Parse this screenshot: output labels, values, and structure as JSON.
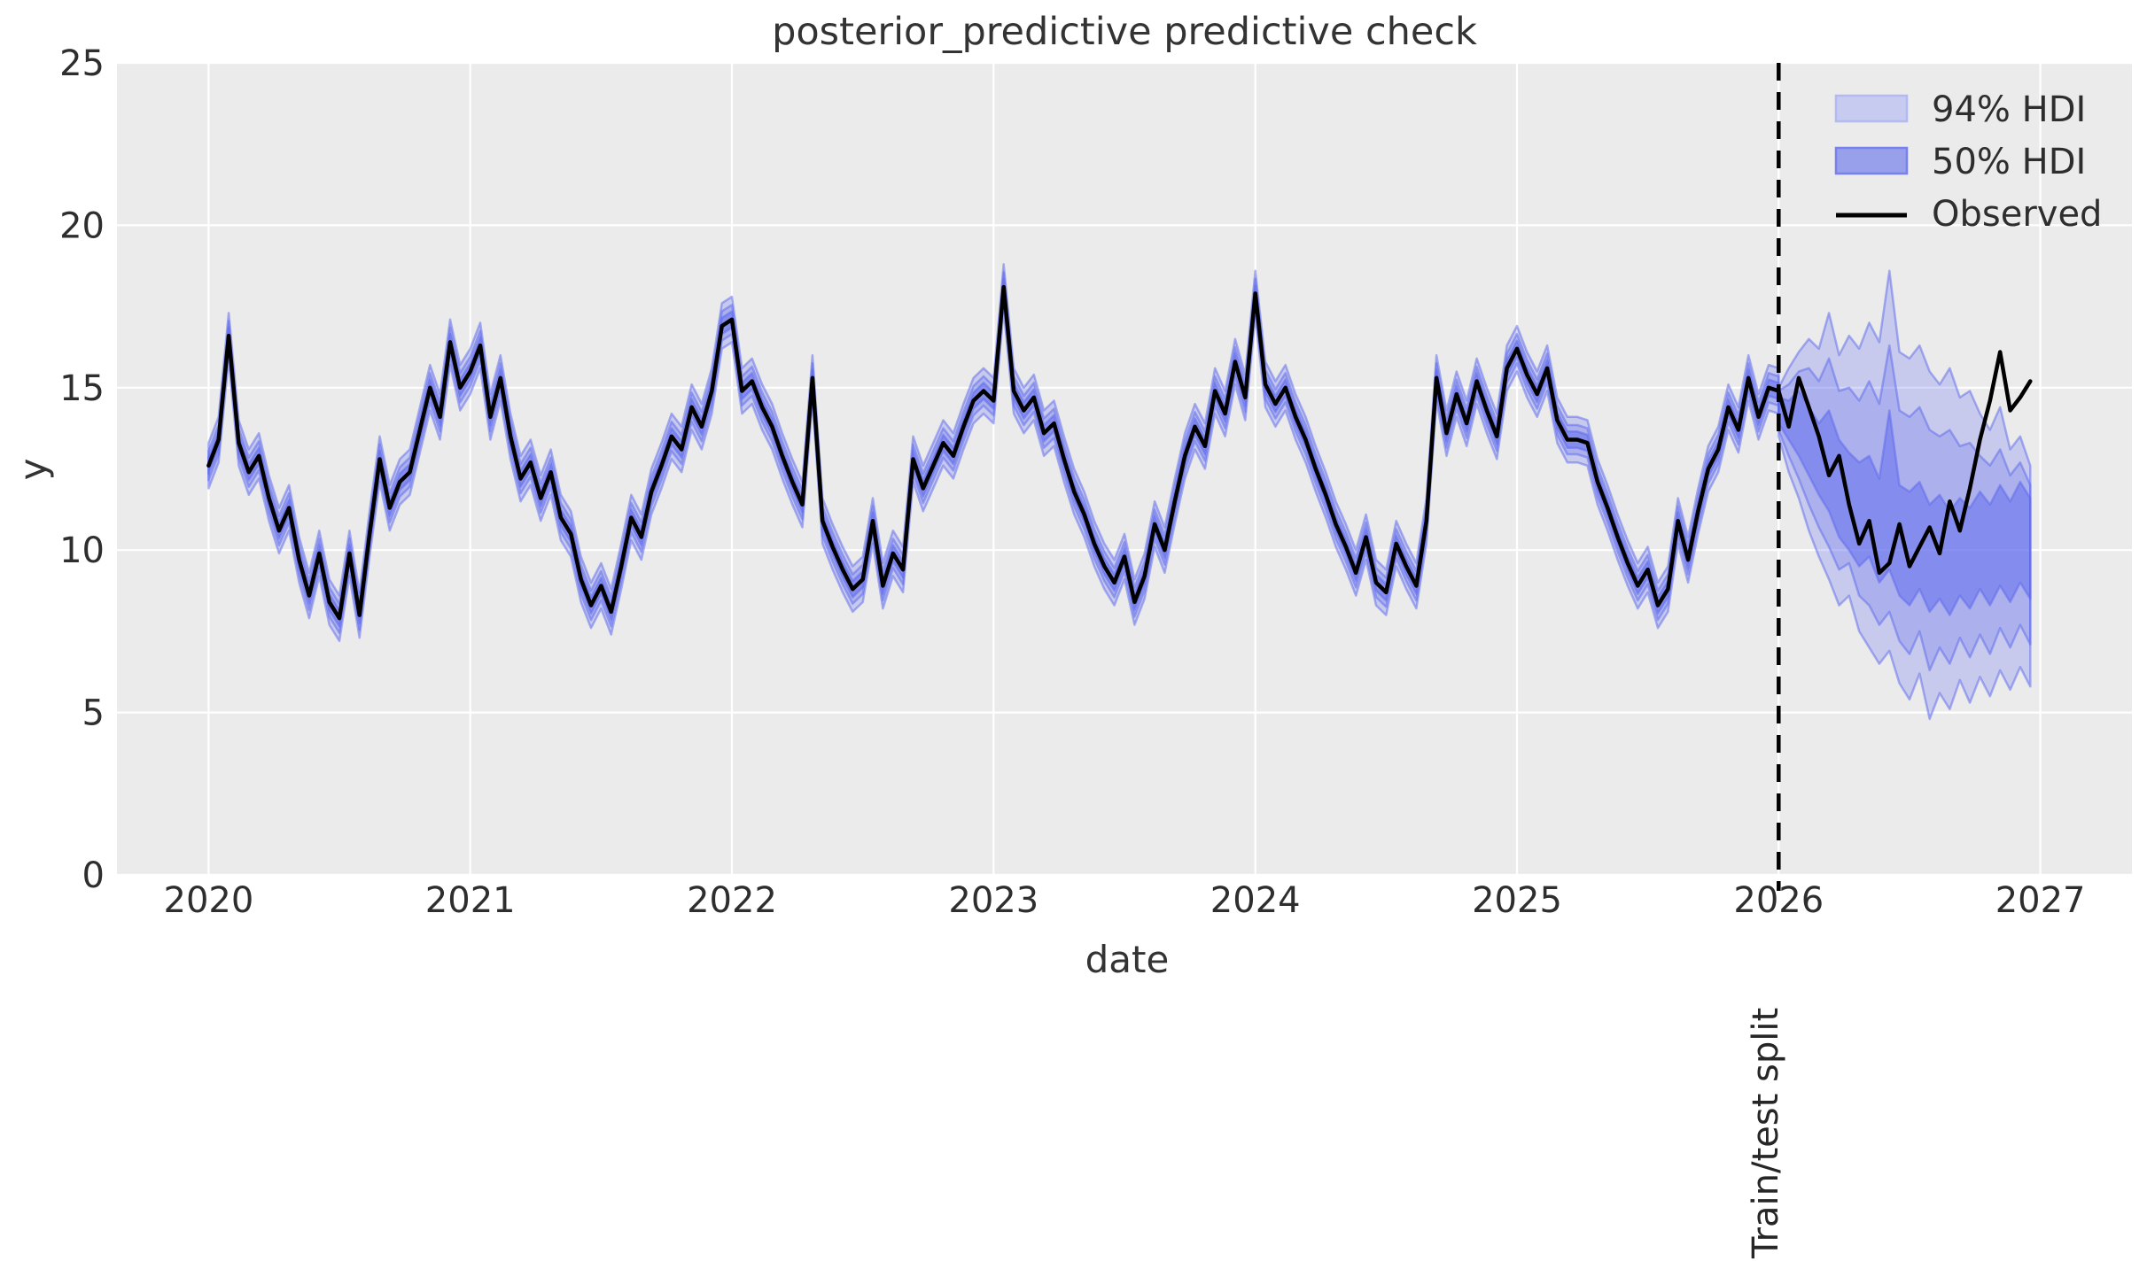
{
  "figure": {
    "title": "posterior_predictive predictive check",
    "xlabel": "date",
    "ylabel": "y",
    "split_annotation": "Train/test split"
  },
  "legend": {
    "position": "upper right",
    "items": [
      {
        "label": "94% HDI",
        "swatch": "patch",
        "fill": "#c6cbef",
        "edge": "#b3b9f3"
      },
      {
        "label": "50% HDI",
        "swatch": "patch",
        "fill": "#98a0ec",
        "edge": "#7880ee"
      },
      {
        "label": "Observed",
        "swatch": "line",
        "color": "#000000"
      }
    ]
  },
  "colors": {
    "axes_bg": "#ebebeb",
    "grid": "#ffffff",
    "band": "#5b67ee",
    "observed": "#000000",
    "split_line": "#000000",
    "tick_text": "#2e2e2e"
  },
  "chart_data": {
    "type": "line",
    "title": "posterior_predictive predictive check",
    "xlabel": "date",
    "ylabel": "y",
    "xlim": [
      2019.65,
      2027.35
    ],
    "ylim": [
      0,
      25
    ],
    "xticks": [
      2020,
      2021,
      2022,
      2023,
      2024,
      2025,
      2026,
      2027
    ],
    "yticks": [
      0,
      5,
      10,
      15,
      20,
      25
    ],
    "grid": true,
    "legend_position": "upper right",
    "split_x": 2026,
    "observed": {
      "name": "Observed",
      "x0": 2020.0,
      "dx": 0.0384615,
      "y": [
        12.6,
        13.4,
        16.6,
        13.3,
        12.4,
        12.9,
        11.6,
        10.6,
        11.3,
        9.7,
        8.6,
        9.9,
        8.4,
        7.9,
        9.9,
        8.0,
        10.5,
        12.8,
        11.3,
        12.1,
        12.4,
        13.7,
        15.0,
        14.1,
        16.4,
        15.0,
        15.5,
        16.3,
        14.1,
        15.3,
        13.5,
        12.2,
        12.7,
        11.6,
        12.4,
        11.0,
        10.5,
        9.1,
        8.3,
        8.9,
        8.1,
        9.5,
        11.0,
        10.4,
        11.8,
        12.6,
        13.5,
        13.1,
        14.4,
        13.8,
        14.9,
        16.9,
        17.1,
        14.9,
        15.2,
        14.4,
        13.8,
        12.9,
        12.1,
        11.4,
        15.3,
        10.9,
        10.1,
        9.4,
        8.8,
        9.1,
        10.9,
        8.9,
        9.9,
        9.4,
        12.8,
        11.9,
        12.6,
        13.3,
        12.9,
        13.8,
        14.6,
        14.9,
        14.6,
        18.1,
        14.9,
        14.3,
        14.7,
        13.6,
        13.9,
        12.8,
        11.8,
        11.1,
        10.2,
        9.5,
        9.0,
        9.8,
        8.4,
        9.2,
        10.8,
        10.0,
        11.5,
        12.9,
        13.8,
        13.2,
        14.9,
        14.2,
        15.8,
        14.7,
        17.9,
        15.1,
        14.5,
        15.0,
        14.1,
        13.4,
        12.5,
        11.7,
        10.8,
        10.1,
        9.3,
        10.4,
        9.0,
        8.7,
        10.2,
        9.5,
        8.9,
        10.9,
        15.3,
        13.6,
        14.8,
        13.9,
        15.2,
        14.3,
        13.5,
        15.6,
        16.2,
        15.4,
        14.8,
        15.6,
        14.0,
        13.4,
        13.4,
        13.3,
        12.1,
        11.3,
        10.4,
        9.6,
        8.9,
        9.4,
        8.3,
        8.8,
        10.9,
        9.7,
        11.2,
        12.5,
        13.1,
        14.4,
        13.7,
        15.3,
        14.1,
        15.0,
        14.9,
        13.8,
        15.3,
        14.4,
        13.5,
        12.3,
        12.9,
        11.4,
        10.2,
        10.9,
        9.3,
        9.6,
        10.8,
        9.5,
        10.1,
        10.7,
        9.9,
        11.5,
        10.6,
        11.9,
        13.4,
        14.6,
        16.1,
        14.3,
        14.7,
        15.2
      ]
    },
    "insample_hdi": {
      "x_end": 2026.0,
      "halfwidth_94_outer": 0.7,
      "halfwidth_94_inner": 0.45,
      "halfwidth_50": 0.25
    },
    "forecast_hdi": {
      "x0": 2026.0,
      "dx": 0.0384615,
      "hdi94_hi": [
        15.0,
        15.6,
        16.1,
        16.5,
        16.2,
        17.3,
        16.0,
        16.6,
        16.2,
        17.0,
        16.4,
        18.6,
        16.1,
        15.9,
        16.3,
        15.5,
        15.1,
        15.6,
        14.7,
        14.9,
        14.2,
        13.7,
        14.4,
        13.1,
        13.5,
        12.6
      ],
      "hdi94_lo": [
        13.5,
        12.4,
        11.6,
        10.6,
        9.8,
        9.1,
        8.3,
        8.6,
        7.5,
        7.0,
        6.5,
        6.9,
        5.9,
        5.4,
        6.2,
        4.8,
        5.6,
        5.1,
        6.0,
        5.3,
        6.1,
        5.5,
        6.3,
        5.7,
        6.4,
        5.8
      ],
      "hdi94_inner_hi": [
        14.9,
        15.1,
        15.5,
        15.6,
        15.2,
        15.9,
        14.9,
        15.0,
        14.6,
        15.2,
        14.5,
        16.3,
        14.3,
        14.1,
        14.4,
        13.7,
        13.5,
        13.7,
        13.2,
        13.3,
        12.9,
        12.6,
        13.1,
        12.3,
        12.7,
        12.0
      ],
      "hdi94_inner_lo": [
        13.7,
        12.9,
        12.2,
        11.4,
        10.7,
        10.1,
        9.4,
        9.6,
        8.6,
        8.3,
        7.7,
        8.1,
        7.2,
        6.8,
        7.5,
        6.3,
        7.0,
        6.5,
        7.3,
        6.7,
        7.4,
        6.8,
        7.6,
        7.0,
        7.7,
        7.1
      ],
      "hdi50_hi": [
        14.7,
        14.6,
        14.9,
        14.4,
        13.9,
        14.3,
        13.4,
        13.0,
        12.7,
        12.9,
        12.2,
        14.3,
        12.0,
        11.8,
        12.1,
        11.4,
        11.7,
        11.2,
        11.6,
        11.3,
        11.8,
        11.4,
        12.0,
        11.5,
        12.1,
        11.6
      ],
      "hdi50_lo": [
        13.9,
        13.4,
        12.9,
        12.3,
        11.7,
        11.2,
        10.4,
        10.0,
        9.5,
        9.8,
        9.0,
        9.4,
        8.6,
        8.3,
        8.8,
        8.1,
        8.5,
        8.0,
        8.6,
        8.2,
        8.8,
        8.3,
        8.9,
        8.4,
        9.0,
        8.5
      ]
    }
  }
}
